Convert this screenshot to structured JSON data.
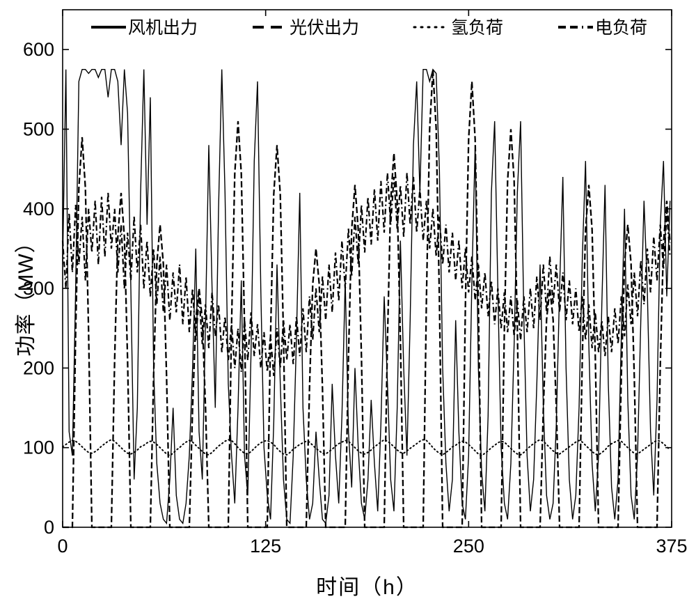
{
  "figure": {
    "background": "#ffffff",
    "axis_color": "#000000"
  },
  "chart_data": {
    "type": "line",
    "title": "",
    "xlabel": "时间（h）",
    "ylabel": "功率（MW）",
    "xlim": [
      0,
      375
    ],
    "ylim": [
      0,
      650
    ],
    "xticks": [
      0,
      125,
      250,
      375
    ],
    "yticks": [
      0,
      100,
      200,
      300,
      400,
      500,
      600
    ],
    "grid": false,
    "legend_position": "top-inside",
    "x_start": 0,
    "x_step": 2,
    "series": [
      {
        "name": "风机出力",
        "style": "solid",
        "width": 1.4,
        "color": "#000000",
        "values": [
          330,
          575,
          120,
          90,
          300,
          560,
          575,
          575,
          570,
          575,
          575,
          565,
          575,
          575,
          540,
          575,
          575,
          560,
          480,
          575,
          520,
          300,
          60,
          150,
          420,
          575,
          380,
          540,
          200,
          80,
          30,
          10,
          5,
          60,
          150,
          40,
          10,
          5,
          30,
          90,
          200,
          350,
          120,
          60,
          260,
          480,
          300,
          150,
          400,
          575,
          420,
          180,
          90,
          30,
          150,
          310,
          90,
          40,
          220,
          460,
          560,
          300,
          100,
          40,
          10,
          130,
          330,
          180,
          60,
          10,
          5,
          90,
          240,
          420,
          150,
          60,
          10,
          30,
          120,
          60,
          10,
          5,
          40,
          180,
          90,
          30,
          140,
          310,
          120,
          50,
          200,
          100,
          30,
          10,
          60,
          160,
          80,
          20,
          130,
          290,
          180,
          60,
          20,
          150,
          360,
          200,
          90,
          260,
          480,
          560,
          420,
          575,
          575,
          560,
          575,
          570,
          450,
          200,
          80,
          20,
          60,
          260,
          120,
          30,
          10,
          90,
          310,
          480,
          200,
          70,
          20,
          140,
          420,
          510,
          300,
          100,
          30,
          10,
          80,
          230,
          420,
          510,
          260,
          90,
          20,
          60,
          180,
          330,
          150,
          40,
          10,
          30,
          130,
          300,
          440,
          200,
          60,
          10,
          40,
          150,
          340,
          460,
          230,
          80,
          20,
          90,
          280,
          430,
          180,
          50,
          10,
          60,
          240,
          400,
          160,
          40,
          10,
          90,
          260,
          410,
          300,
          120,
          40,
          160,
          380,
          460,
          290,
          410
        ]
      },
      {
        "name": "光伏出力",
        "style": "thick-dash",
        "width": 2.3,
        "color": "#000000",
        "values": [
          0,
          0,
          0,
          0,
          245,
          426,
          490,
          426,
          245,
          0,
          0,
          0,
          0,
          0,
          0,
          0,
          210,
          365,
          420,
          365,
          210,
          0,
          0,
          0,
          0,
          0,
          0,
          0,
          190,
          331,
          380,
          331,
          190,
          0,
          0,
          0,
          0,
          0,
          0,
          0,
          150,
          261,
          300,
          261,
          150,
          0,
          0,
          0,
          0,
          0,
          0,
          0,
          255,
          444,
          510,
          444,
          255,
          0,
          0,
          0,
          0,
          0,
          0,
          0,
          240,
          418,
          480,
          418,
          240,
          0,
          0,
          0,
          0,
          0,
          0,
          0,
          175,
          305,
          350,
          305,
          175,
          0,
          0,
          0,
          0,
          0,
          0,
          0,
          215,
          374,
          430,
          374,
          215,
          0,
          0,
          0,
          0,
          0,
          0,
          0,
          235,
          409,
          470,
          409,
          235,
          0,
          0,
          0,
          0,
          0,
          0,
          0,
          288,
          500,
          575,
          500,
          288,
          0,
          0,
          0,
          0,
          0,
          0,
          0,
          280,
          487,
          560,
          487,
          280,
          0,
          0,
          0,
          0,
          0,
          0,
          0,
          250,
          435,
          500,
          435,
          250,
          0,
          0,
          0,
          0,
          0,
          0,
          0,
          150,
          261,
          300,
          261,
          150,
          0,
          0,
          0,
          0,
          0,
          0,
          0,
          215,
          374,
          430,
          374,
          215,
          0,
          0,
          0,
          0,
          0,
          0,
          0,
          190,
          331,
          380,
          331,
          190,
          0,
          0,
          0,
          0,
          0,
          0,
          0,
          205,
          357,
          410,
          357
        ]
      },
      {
        "name": "氢负荷",
        "style": "dotted",
        "width": 2.0,
        "color": "#000000",
        "values": [
          101,
          104,
          107,
          109,
          108,
          105,
          101,
          97,
          94,
          93,
          95,
          98,
          102,
          105,
          108,
          110,
          108,
          104,
          100,
          96,
          93,
          92,
          94,
          97,
          101,
          103,
          106,
          108,
          107,
          104,
          100,
          96,
          92,
          90,
          93,
          97,
          100,
          104,
          107,
          109,
          107,
          103,
          99,
          95,
          92,
          91,
          94,
          98,
          102,
          105,
          108,
          110,
          109,
          105,
          100,
          96,
          93,
          92,
          95,
          99,
          103,
          106,
          108,
          109,
          107,
          104,
          99,
          95,
          92,
          91,
          94,
          98,
          101,
          104,
          106,
          108,
          107,
          103,
          99,
          96,
          93,
          92,
          95,
          98,
          102,
          105,
          107,
          109,
          108,
          104,
          100,
          96,
          93,
          92,
          94,
          97,
          101,
          104,
          107,
          110,
          108,
          105,
          101,
          97,
          94,
          93,
          96,
          99,
          102,
          105,
          108,
          110,
          109,
          105,
          100,
          96,
          93,
          91,
          94,
          97,
          101,
          103,
          106,
          108,
          107,
          104,
          100,
          96,
          92,
          90,
          93,
          96,
          100,
          103,
          106,
          108,
          107,
          103,
          99,
          95,
          92,
          91,
          94,
          98,
          102,
          105,
          108,
          110,
          108,
          104,
          100,
          96,
          93,
          92,
          95,
          98,
          101,
          104,
          107,
          109,
          107,
          103,
          99,
          95,
          92,
          91,
          94,
          97,
          102,
          105,
          107,
          109,
          108,
          104,
          100,
          96,
          93,
          92,
          95,
          98,
          101,
          104,
          107,
          109,
          108,
          105,
          101,
          97
        ]
      },
      {
        "name": "电负荷",
        "style": "dash-dot",
        "width": 2.2,
        "color": "#000000",
        "values": [
          360,
          300,
          395,
          320,
          405,
          330,
          390,
          310,
          400,
          345,
          410,
          330,
          415,
          340,
          420,
          350,
          400,
          320,
          380,
          300,
          370,
          310,
          390,
          320,
          380,
          300,
          360,
          290,
          350,
          280,
          340,
          270,
          330,
          260,
          320,
          270,
          330,
          255,
          315,
          245,
          300,
          235,
          290,
          230,
          280,
          225,
          295,
          240,
          280,
          220,
          265,
          210,
          255,
          200,
          250,
          195,
          260,
          210,
          270,
          215,
          255,
          200,
          245,
          195,
          240,
          190,
          250,
          200,
          260,
          210,
          255,
          205,
          265,
          215,
          275,
          220,
          290,
          235,
          300,
          245,
          315,
          260,
          330,
          270,
          345,
          285,
          360,
          300,
          375,
          315,
          390,
          330,
          405,
          345,
          415,
          355,
          425,
          360,
          435,
          370,
          445,
          380,
          440,
          375,
          430,
          365,
          445,
          380,
          440,
          370,
          425,
          360,
          410,
          350,
          400,
          340,
          390,
          330,
          380,
          320,
          370,
          310,
          360,
          300,
          350,
          295,
          340,
          285,
          330,
          275,
          320,
          265,
          310,
          255,
          300,
          250,
          295,
          245,
          290,
          240,
          285,
          235,
          290,
          245,
          300,
          250,
          315,
          260,
          330,
          270,
          340,
          280,
          330,
          270,
          320,
          260,
          310,
          255,
          300,
          245,
          290,
          235,
          280,
          225,
          270,
          220,
          260,
          215,
          265,
          220,
          275,
          230,
          290,
          240,
          305,
          255,
          320,
          265,
          335,
          280,
          350,
          295,
          365,
          310,
          380,
          325,
          395,
          340
        ]
      }
    ]
  }
}
